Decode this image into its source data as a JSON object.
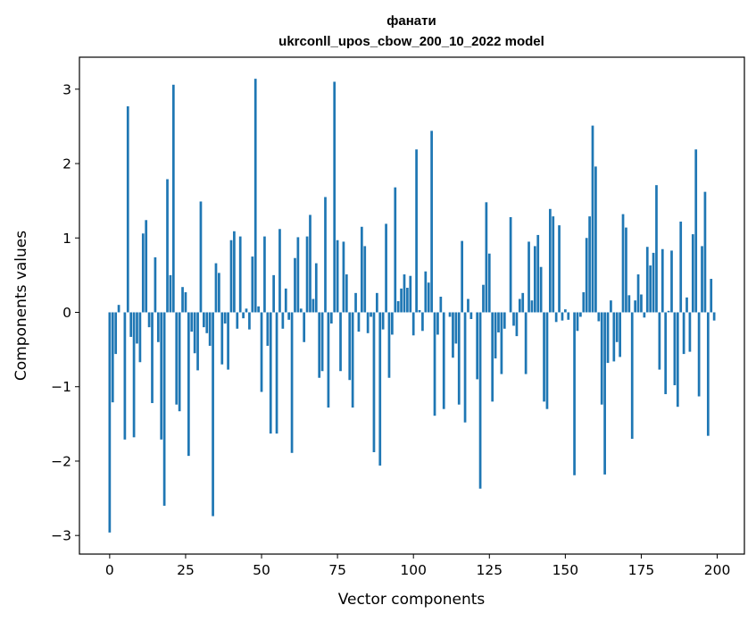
{
  "chart_data": {
    "type": "bar",
    "title": "фанати",
    "subtitle": "ukrconll_upos_cbow_200_10_2022 model",
    "xlabel": "Vector components",
    "ylabel": "Components values",
    "xlim": [
      -9.95,
      208.95
    ],
    "ylim": [
      -3.25,
      3.43
    ],
    "xticks": [
      0,
      25,
      50,
      75,
      100,
      125,
      150,
      175,
      200
    ],
    "xtick_labels": [
      "0",
      "25",
      "50",
      "75",
      "100",
      "125",
      "150",
      "175",
      "200"
    ],
    "yticks": [
      -3,
      -2,
      -1,
      0,
      1,
      2,
      3
    ],
    "ytick_labels": [
      "−3",
      "−2",
      "−1",
      "0",
      "1",
      "2",
      "3"
    ],
    "grid": false,
    "bar_color": "#1f77b4",
    "values": [
      -2.96,
      -1.21,
      -0.56,
      0.1,
      0.0,
      -1.71,
      2.77,
      -0.33,
      -1.68,
      -0.42,
      -0.67,
      1.06,
      1.24,
      -0.2,
      -1.22,
      0.74,
      -0.4,
      -1.71,
      -2.6,
      1.79,
      0.5,
      3.06,
      -1.24,
      -1.33,
      0.34,
      0.27,
      -1.93,
      -0.26,
      -0.55,
      -0.78,
      1.49,
      -0.2,
      -0.28,
      -0.45,
      -2.74,
      0.66,
      0.53,
      -0.7,
      -0.15,
      -0.77,
      0.97,
      1.09,
      -0.22,
      1.02,
      -0.08,
      0.05,
      -0.23,
      0.75,
      3.14,
      0.08,
      -1.07,
      1.02,
      -0.45,
      -1.63,
      0.5,
      -1.63,
      1.12,
      -0.22,
      0.32,
      -0.1,
      -1.89,
      0.73,
      1.01,
      0.05,
      -0.4,
      1.02,
      1.31,
      0.18,
      0.66,
      -0.88,
      -0.79,
      1.55,
      -1.28,
      -0.15,
      3.1,
      0.97,
      -0.79,
      0.95,
      0.51,
      -0.91,
      -1.28,
      0.26,
      -0.26,
      1.15,
      0.89,
      -0.28,
      -0.06,
      -1.88,
      0.26,
      -2.06,
      -0.23,
      1.19,
      -0.88,
      -0.3,
      1.68,
      0.15,
      0.32,
      0.51,
      0.33,
      0.49,
      -0.31,
      2.19,
      0.03,
      -0.25,
      0.55,
      0.4,
      2.44,
      -1.39,
      -0.3,
      0.21,
      -1.3,
      0.0,
      -0.06,
      -0.61,
      -0.42,
      -1.24,
      0.96,
      -1.48,
      0.18,
      -0.09,
      0.0,
      -0.9,
      -2.37,
      0.37,
      1.48,
      0.79,
      -1.2,
      -0.62,
      -0.27,
      -0.83,
      -0.22,
      0.0,
      1.28,
      -0.18,
      -0.32,
      0.18,
      0.26,
      -0.83,
      0.95,
      0.16,
      0.89,
      1.04,
      0.61,
      -1.2,
      -1.3,
      1.39,
      1.29,
      -0.13,
      1.17,
      -0.11,
      0.04,
      -0.1,
      0.0,
      -2.19,
      -0.25,
      -0.06,
      0.27,
      1.0,
      1.29,
      2.51,
      1.96,
      -0.12,
      -1.24,
      -2.18,
      -0.68,
      0.16,
      -0.66,
      -0.4,
      -0.6,
      1.32,
      1.14,
      0.23,
      -1.7,
      0.16,
      0.51,
      0.24,
      -0.07,
      0.88,
      0.63,
      0.8,
      1.71,
      -0.77,
      0.85,
      -1.1,
      0.02,
      0.83,
      -0.98,
      -1.27,
      1.22,
      -0.56,
      0.2,
      -0.53,
      1.05,
      2.19,
      -1.13,
      0.89,
      1.62,
      -1.66,
      0.45,
      -0.11
    ]
  }
}
